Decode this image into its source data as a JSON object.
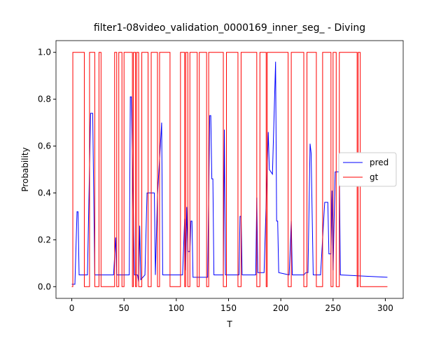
{
  "chart_data": {
    "type": "line",
    "title": "filter1-08video_validation_0000169_inner_seg_ - Diving",
    "x_label": "T",
    "y_label": "Probability",
    "xlim": [
      -15.1,
      317.1
    ],
    "ylim": [
      -0.05,
      1.05
    ],
    "xticks": [
      0,
      50,
      100,
      150,
      200,
      250,
      300
    ],
    "yticks": [
      {
        "value": 0,
        "label": "0.0"
      },
      {
        "value": 0.2,
        "label": "0.2"
      },
      {
        "value": 0.4,
        "label": "0.4"
      },
      {
        "value": 0.6,
        "label": "0.6"
      },
      {
        "value": 0.8,
        "label": "0.8"
      },
      {
        "value": 1,
        "label": "1.0"
      }
    ],
    "legend": "center right",
    "series": [
      {
        "name": "pred",
        "color": "#0000ff",
        "x": [
          0,
          3,
          5,
          6,
          7,
          15,
          18,
          20,
          22,
          40,
          42,
          43,
          55,
          56,
          57,
          59,
          60,
          63,
          64,
          65,
          66,
          70,
          72,
          79,
          80,
          82,
          86,
          87,
          106,
          108,
          109,
          110,
          111,
          113,
          114,
          115,
          116,
          130,
          132,
          133,
          134,
          135,
          136,
          145,
          146,
          147,
          160,
          161,
          162,
          163,
          176,
          177,
          178,
          184,
          188,
          189,
          192,
          195,
          196,
          197,
          198,
          208,
          210,
          211,
          222,
          224,
          226,
          228,
          229,
          231,
          238,
          242,
          245,
          246,
          248,
          249,
          250,
          252,
          256,
          257,
          302
        ],
        "values": [
          0.01,
          0.01,
          0.32,
          0.32,
          0.05,
          0.05,
          0.74,
          0.74,
          0.05,
          0.05,
          0.21,
          0.05,
          0.05,
          0.81,
          0.81,
          0.3,
          0.05,
          0.05,
          0.02,
          0.26,
          0.03,
          0.05,
          0.4,
          0.4,
          0.05,
          0.39,
          0.7,
          0.05,
          0.05,
          0.29,
          0.07,
          0.34,
          0.15,
          0.15,
          0.28,
          0.28,
          0.04,
          0.04,
          0.73,
          0.73,
          0.46,
          0.46,
          0.05,
          0.05,
          0.67,
          0.05,
          0.05,
          0.3,
          0.3,
          0.05,
          0.05,
          0.38,
          0.06,
          0.06,
          0.66,
          0.5,
          0.48,
          0.96,
          0.28,
          0.28,
          0.06,
          0.05,
          0.28,
          0.05,
          0.05,
          0.06,
          0.06,
          0.61,
          0.57,
          0.05,
          0.05,
          0.36,
          0.36,
          0.14,
          0.14,
          0.41,
          0.07,
          0.49,
          0.49,
          0.05,
          0.04
        ]
      },
      {
        "name": "gt",
        "color": "#ff0000",
        "x": [
          0,
          1,
          1,
          12,
          12,
          17,
          17,
          22,
          22,
          26,
          26,
          28,
          28,
          41,
          41,
          43,
          43,
          45,
          45,
          48,
          48,
          50,
          50,
          58,
          58,
          59,
          59,
          61,
          61,
          62,
          62,
          64,
          64,
          67,
          67,
          73,
          73,
          76,
          76,
          82,
          82,
          84,
          84,
          94,
          94,
          104,
          104,
          108,
          108,
          109,
          109,
          111,
          111,
          113,
          113,
          120,
          120,
          122,
          122,
          129,
          129,
          131,
          131,
          145,
          145,
          148,
          148,
          159,
          159,
          162,
          162,
          177,
          177,
          180,
          180,
          186,
          186,
          187,
          187,
          207,
          207,
          210,
          210,
          222,
          222,
          225,
          225,
          234,
          234,
          240,
          240,
          248,
          248,
          250,
          250,
          253,
          253,
          256,
          256,
          273,
          273,
          274,
          274,
          276,
          276,
          302
        ],
        "values": [
          0,
          0,
          1,
          1,
          0,
          0,
          1,
          1,
          0,
          0,
          1,
          1,
          0,
          0,
          1,
          1,
          0,
          0,
          1,
          1,
          0,
          0,
          1,
          1,
          0,
          0,
          1,
          1,
          0,
          0,
          1,
          1,
          0,
          0,
          1,
          1,
          0,
          0,
          1,
          1,
          0,
          0,
          1,
          1,
          0,
          0,
          1,
          1,
          0,
          0,
          1,
          1,
          0,
          0,
          1,
          1,
          0,
          0,
          1,
          1,
          0,
          0,
          1,
          1,
          0,
          0,
          1,
          1,
          0,
          0,
          1,
          1,
          0,
          0,
          1,
          1,
          0,
          0,
          1,
          1,
          0,
          0,
          1,
          1,
          0,
          0,
          1,
          1,
          0,
          0,
          1,
          1,
          0,
          0,
          1,
          1,
          0,
          0,
          1,
          1,
          0,
          0,
          1,
          1,
          0,
          0
        ]
      }
    ]
  }
}
